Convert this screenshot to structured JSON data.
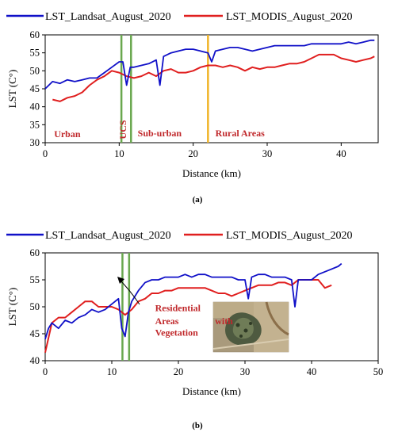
{
  "figure": {
    "panel_a_label": "(a)",
    "panel_b_label": "(b)"
  },
  "colors": {
    "landsat": "#1010c8",
    "modis": "#e01f1f",
    "zone_green": "#6aa84f",
    "zone_yellow": "#f0b429",
    "annotation": "#c0282b"
  },
  "chart_data": [
    {
      "type": "line",
      "xlabel": "Distance (km)",
      "ylabel": "LST (C°)",
      "xlim": [
        0,
        45
      ],
      "ylim": [
        30,
        60
      ],
      "xticks": [
        0,
        10,
        20,
        30,
        40
      ],
      "yticks": [
        30,
        35,
        40,
        45,
        50,
        55,
        60
      ],
      "legend_position": "top",
      "grid": false,
      "series": [
        {
          "name": "LST_Landsat_August_2020",
          "color": "#1010c8",
          "x": [
            0,
            1,
            2,
            3,
            4,
            5,
            6,
            7,
            8,
            9,
            10,
            10.5,
            11,
            11.5,
            12,
            13,
            14,
            15,
            15.5,
            16,
            17,
            18,
            19,
            20,
            21,
            22,
            22.5,
            23,
            24,
            25,
            26,
            27,
            28,
            29,
            30,
            31,
            32,
            33,
            34,
            35,
            36,
            37,
            38,
            39,
            40,
            41,
            42,
            43,
            44,
            44.5
          ],
          "y": [
            45,
            47,
            46.5,
            47.5,
            47,
            47.5,
            48,
            48,
            49.5,
            51,
            52.5,
            52.5,
            46,
            51,
            51,
            51.5,
            52,
            53,
            46,
            54,
            55,
            55.5,
            56,
            56,
            55.5,
            55,
            52.5,
            55.5,
            56,
            56.5,
            56.5,
            56,
            55.5,
            56,
            56.5,
            57,
            57,
            57,
            57,
            57,
            57.5,
            57.5,
            57.5,
            57.5,
            57.5,
            58,
            57.5,
            58,
            58.5,
            58.5
          ]
        },
        {
          "name": "LST_MODIS_August_2020",
          "color": "#e01f1f",
          "x": [
            1,
            2,
            3,
            4,
            5,
            6,
            7,
            8,
            9,
            10,
            11,
            12,
            13,
            14,
            15,
            16,
            17,
            18,
            19,
            20,
            21,
            22,
            23,
            24,
            25,
            26,
            27,
            28,
            29,
            30,
            31,
            32,
            33,
            34,
            35,
            36,
            37,
            38,
            39,
            40,
            41,
            42,
            43,
            44,
            44.5
          ],
          "y": [
            42,
            41.5,
            42.5,
            43,
            44,
            46,
            47.5,
            48.5,
            50,
            49.5,
            48.5,
            48,
            48.5,
            49.5,
            48.5,
            50,
            50.5,
            49.5,
            49.5,
            50,
            51,
            51.5,
            51.5,
            51,
            51.5,
            51,
            50,
            51,
            50.5,
            51,
            51,
            51.5,
            52,
            52,
            52.5,
            53.5,
            54.5,
            54.5,
            54.5,
            53.5,
            53,
            52.5,
            53,
            53.5,
            54
          ]
        }
      ],
      "vertical_lines": [
        {
          "x": 10.3,
          "color": "#6aa84f"
        },
        {
          "x": 11.6,
          "color": "#6aa84f"
        },
        {
          "x": 22,
          "color": "#f0b429"
        }
      ],
      "annotations": [
        {
          "text": "Urban",
          "x": 1.2,
          "y": 31.5
        },
        {
          "text": "UCS",
          "x": 10.5,
          "y": 31
        },
        {
          "text": "Sub-urban",
          "x": 12.5,
          "y": 31.8
        },
        {
          "text": "Rural Areas",
          "x": 23,
          "y": 31.8
        }
      ]
    },
    {
      "type": "line",
      "xlabel": "Distance (km)",
      "ylabel": "LST (C°)",
      "xlim": [
        0,
        50
      ],
      "ylim": [
        40,
        60
      ],
      "xticks": [
        0,
        10,
        20,
        30,
        40,
        50
      ],
      "yticks": [
        40,
        45,
        50,
        55,
        60
      ],
      "legend_position": "top",
      "grid": false,
      "series": [
        {
          "name": "LST_Landsat_August_2020",
          "color": "#1010c8",
          "x": [
            0,
            0.5,
            1,
            2,
            3,
            4,
            5,
            6,
            7,
            8,
            9,
            10,
            11,
            11.5,
            12,
            12.5,
            13,
            14,
            15,
            16,
            17,
            18,
            19,
            20,
            21,
            22,
            23,
            24,
            25,
            26,
            27,
            28,
            29,
            30,
            30.5,
            31,
            32,
            33,
            34,
            35,
            36,
            37,
            37.5,
            38,
            39,
            40,
            41,
            42,
            43,
            44,
            44.5
          ],
          "y": [
            44,
            46,
            47,
            46,
            47.5,
            47,
            48,
            48.5,
            49.5,
            49,
            49.5,
            50.5,
            51.5,
            46,
            44.5,
            49,
            51,
            53,
            54.5,
            55,
            55,
            55.5,
            55.5,
            55.5,
            56,
            55.5,
            56,
            56,
            55.5,
            55.5,
            55.5,
            55.5,
            55,
            55,
            51.5,
            55.5,
            56,
            56,
            55.5,
            55.5,
            55.5,
            55,
            50,
            55,
            55,
            55,
            56,
            56.5,
            57,
            57.5,
            58
          ]
        },
        {
          "name": "LST_MODIS_August_2020",
          "color": "#e01f1f",
          "x": [
            0,
            1,
            2,
            3,
            4,
            5,
            6,
            7,
            8,
            9,
            10,
            11,
            12,
            13,
            14,
            15,
            16,
            17,
            18,
            19,
            20,
            21,
            22,
            23,
            24,
            25,
            26,
            27,
            28,
            29,
            30,
            31,
            32,
            33,
            34,
            35,
            36,
            37,
            38,
            39,
            40,
            41,
            42,
            43
          ],
          "y": [
            41.5,
            47,
            48,
            48,
            49,
            50,
            51,
            51,
            50,
            50,
            50,
            49.5,
            48.5,
            49.5,
            51,
            51.5,
            52.5,
            52.5,
            53,
            53,
            53.5,
            53.5,
            53.5,
            53.5,
            53.5,
            53,
            52.5,
            52.5,
            52,
            52.5,
            53,
            53.5,
            54,
            54,
            54,
            54.5,
            54.5,
            54,
            55,
            55,
            55,
            55,
            53.5,
            54
          ]
        }
      ],
      "vertical_lines": [
        {
          "x": 11.6,
          "color": "#6aa84f"
        },
        {
          "x": 12.6,
          "color": "#6aa84f"
        }
      ],
      "annotations": [
        {
          "text": "Residential",
          "x": 16.5,
          "y": 49.2
        },
        {
          "text": "Areas",
          "x": 16.5,
          "y": 46.8
        },
        {
          "text": "with",
          "x": 25.5,
          "y": 46.8
        },
        {
          "text": "Vegetation",
          "x": 16.5,
          "y": 44.6
        }
      ]
    }
  ]
}
